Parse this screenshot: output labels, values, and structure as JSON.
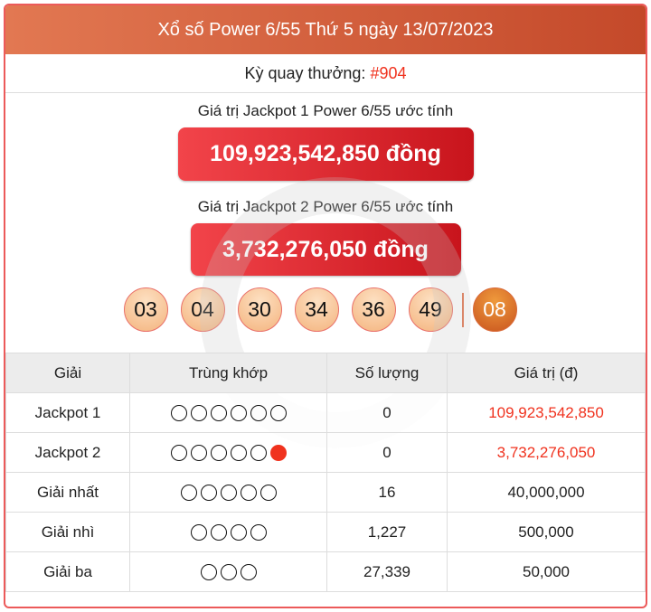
{
  "header": {
    "title": "Xổ số Power 6/55 Thứ 5 ngày 13/07/2023"
  },
  "draw": {
    "label": "Kỳ quay thưởng:",
    "number": "#904"
  },
  "jackpot1": {
    "label": "Giá trị Jackpot 1 Power 6/55 ước tính",
    "value": "109,923,542,850 đồng"
  },
  "jackpot2": {
    "label": "Giá trị Jackpot 2 Power 6/55 ước tính",
    "value": "3,732,276,050 đồng"
  },
  "balls": [
    "03",
    "04",
    "30",
    "34",
    "36",
    "49"
  ],
  "power_ball": "08",
  "colors": {
    "header": "#c4492a",
    "accent": "#f0321e"
  },
  "table": {
    "headers": [
      "Giải",
      "Trùng khớp",
      "Số lượng",
      "Giá trị (đ)"
    ],
    "rows": [
      {
        "prize": "Jackpot 1",
        "match": 6,
        "power": false,
        "count": "0",
        "value": "109,923,542,850",
        "highlight": true
      },
      {
        "prize": "Jackpot 2",
        "match": 5,
        "power": true,
        "count": "0",
        "value": "3,732,276,050",
        "highlight": true
      },
      {
        "prize": "Giải nhất",
        "match": 5,
        "power": false,
        "count": "16",
        "value": "40,000,000",
        "highlight": false
      },
      {
        "prize": "Giải nhì",
        "match": 4,
        "power": false,
        "count": "1,227",
        "value": "500,000",
        "highlight": false
      },
      {
        "prize": "Giải ba",
        "match": 3,
        "power": false,
        "count": "27,339",
        "value": "50,000",
        "highlight": false
      }
    ]
  }
}
